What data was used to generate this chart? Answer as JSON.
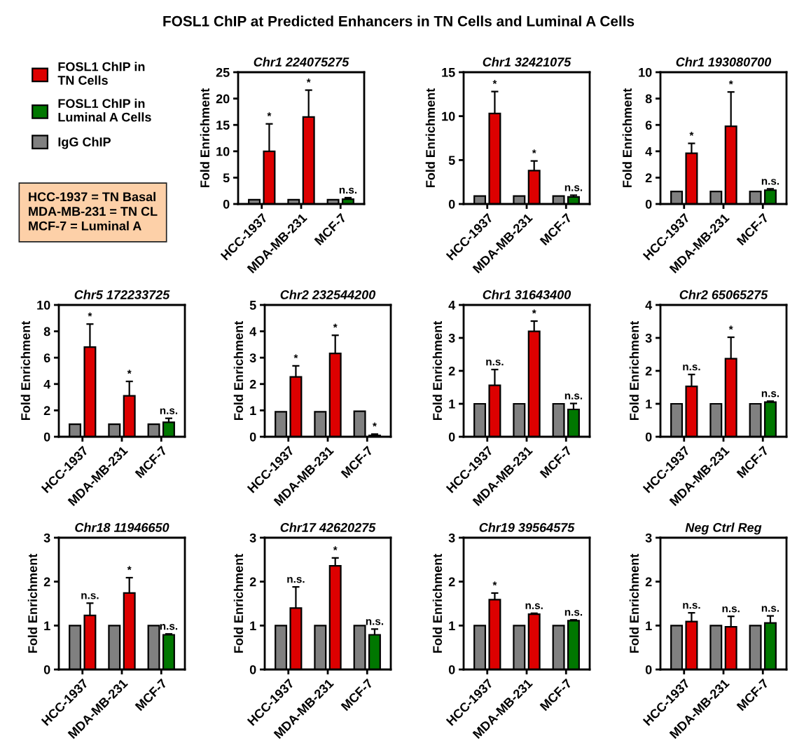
{
  "chart_data": [
    {
      "type": "other",
      "title": "FOSL1 ChIP at Predicted Enhancers in TN Cells and Luminal A Cells",
      "annotations": [
        "HCC-1937 = TN Basal\nMDA-MB-231 = TN CL\nMCF-7 = Luminal A"
      ]
    },
    {
      "type": "bar",
      "title": "Chr1 224075275",
      "ylabel": "Fold Enrichment",
      "categories": [
        "HCC-1937",
        "MDA-MB-231",
        "MCF-7"
      ],
      "ylim": [
        0,
        25
      ],
      "yticks": [
        0,
        5,
        10,
        15,
        20,
        25
      ],
      "legend": "left",
      "series": [
        {
          "name": "IgG ChIP",
          "color": "#808080",
          "values": [
            0.8,
            0.8,
            0.8
          ]
        },
        {
          "name": "FOSL1 ChIP in\nTN Cells",
          "color": "#dd0000",
          "values": [
            10.0,
            16.5,
            null
          ],
          "errors": [
            [
              10.0,
              15.2
            ],
            [
              16.5,
              21.6
            ],
            null
          ]
        },
        {
          "name": "FOSL1 ChIP in\nLuminal A Cells",
          "color": "#007700",
          "values": [
            null,
            null,
            0.9
          ],
          "errors": [
            null,
            null,
            [
              0.9,
              1.2
            ]
          ]
        }
      ],
      "annotations": [
        "*",
        "*",
        "n.s."
      ]
    },
    {
      "type": "bar",
      "title": "Chr1 32421075",
      "ylabel": "Fold Enrichment",
      "categories": [
        "HCC-1937",
        "MDA-MB-231",
        "MCF-7"
      ],
      "ylim": [
        0,
        15
      ],
      "yticks": [
        0,
        5,
        10,
        15
      ],
      "series": [
        {
          "color": "#808080",
          "values": [
            0.9,
            0.9,
            0.9
          ]
        },
        {
          "color": "#dd0000",
          "values": [
            10.3,
            3.8,
            null
          ],
          "errors": [
            [
              10.3,
              12.8
            ],
            [
              3.8,
              4.9
            ],
            null
          ]
        },
        {
          "color": "#007700",
          "values": [
            null,
            null,
            0.8
          ],
          "errors": [
            null,
            null,
            [
              0.8,
              1.0
            ]
          ]
        }
      ],
      "annotations": [
        "*",
        "*",
        "n.s."
      ]
    },
    {
      "type": "bar",
      "title": "Chr1 193080700",
      "ylabel": "Fold Enrichment",
      "categories": [
        "HCC-1937",
        "MDA-MB-231",
        "MCF-7"
      ],
      "ylim": [
        0,
        10
      ],
      "yticks": [
        0,
        2,
        4,
        6,
        8,
        10
      ],
      "series": [
        {
          "color": "#808080",
          "values": [
            0.95,
            0.95,
            0.95
          ]
        },
        {
          "color": "#dd0000",
          "values": [
            3.85,
            5.9,
            null
          ],
          "errors": [
            [
              3.85,
              4.6
            ],
            [
              5.9,
              8.5
            ],
            null
          ]
        },
        {
          "color": "#007700",
          "values": [
            null,
            null,
            1.05
          ],
          "errors": [
            null,
            null,
            [
              1.05,
              1.15
            ]
          ]
        }
      ],
      "annotations": [
        "*",
        "*",
        "n.s."
      ]
    },
    {
      "type": "bar",
      "title": "Chr5 172233725",
      "ylabel": "Fold Enrichment",
      "categories": [
        "HCC-1937",
        "MDA-MB-231",
        "MCF-7"
      ],
      "ylim": [
        0,
        10
      ],
      "yticks": [
        0,
        2,
        4,
        6,
        8,
        10
      ],
      "series": [
        {
          "color": "#808080",
          "values": [
            0.95,
            0.95,
            0.95
          ]
        },
        {
          "color": "#dd0000",
          "values": [
            6.8,
            3.1,
            null
          ],
          "errors": [
            [
              6.8,
              8.55
            ],
            [
              3.1,
              4.2
            ],
            null
          ]
        },
        {
          "color": "#007700",
          "values": [
            null,
            null,
            1.1
          ],
          "errors": [
            null,
            null,
            [
              1.1,
              1.4
            ]
          ]
        }
      ],
      "annotations": [
        "*",
        "*",
        "n.s."
      ]
    },
    {
      "type": "bar",
      "title": "Chr2 232544200",
      "ylabel": "Fold Enrichment",
      "categories": [
        "HCC-1937",
        "MDA-MB-231",
        "MCF-7"
      ],
      "ylim": [
        0,
        5
      ],
      "yticks": [
        0,
        1,
        2,
        3,
        4,
        5
      ],
      "series": [
        {
          "color": "#808080",
          "values": [
            0.95,
            0.95,
            0.97
          ]
        },
        {
          "color": "#dd0000",
          "values": [
            2.27,
            3.16,
            null
          ],
          "errors": [
            [
              2.27,
              2.69
            ],
            [
              3.16,
              3.85
            ],
            null
          ]
        },
        {
          "color": "#007700",
          "values": [
            null,
            null,
            0.05
          ],
          "errors": [
            null,
            null,
            [
              0.05,
              0.1
            ]
          ]
        }
      ],
      "annotations": [
        "*",
        "*",
        "*"
      ]
    },
    {
      "type": "bar",
      "title": "Chr1 31643400",
      "ylabel": "Fold Enrichment",
      "categories": [
        "HCC-1937",
        "MDA-MB-231",
        "MCF-7"
      ],
      "ylim": [
        0,
        4
      ],
      "yticks": [
        0,
        1,
        2,
        3,
        4
      ],
      "series": [
        {
          "color": "#808080",
          "values": [
            1.0,
            1.0,
            1.0
          ]
        },
        {
          "color": "#dd0000",
          "values": [
            1.56,
            3.2,
            null
          ],
          "errors": [
            [
              1.56,
              2.04
            ],
            [
              3.2,
              3.51
            ],
            null
          ]
        },
        {
          "color": "#007700",
          "values": [
            null,
            null,
            0.83
          ],
          "errors": [
            null,
            null,
            [
              0.83,
              1.01
            ]
          ]
        }
      ],
      "annotations": [
        "n.s.",
        "*",
        "n.s."
      ]
    },
    {
      "type": "bar",
      "title": "Chr2 65065275",
      "ylabel": "Fold Enrichment",
      "categories": [
        "HCC-1937",
        "MDA-MB-231",
        "MCF-7"
      ],
      "ylim": [
        0,
        4
      ],
      "yticks": [
        0,
        1,
        2,
        3,
        4
      ],
      "series": [
        {
          "color": "#808080",
          "values": [
            1.0,
            1.0,
            1.0
          ]
        },
        {
          "color": "#dd0000",
          "values": [
            1.53,
            2.37,
            null
          ],
          "errors": [
            [
              1.53,
              1.89
            ],
            [
              2.37,
              3.02
            ],
            null
          ]
        },
        {
          "color": "#007700",
          "values": [
            null,
            null,
            1.05
          ],
          "errors": [
            null,
            null,
            [
              1.05,
              1.08
            ]
          ]
        }
      ],
      "annotations": [
        "n.s.",
        "*",
        "n.s."
      ]
    },
    {
      "type": "bar",
      "title": "Chr18 11946650",
      "ylabel": "Fold Enrichment",
      "categories": [
        "HCC-1937",
        "MDA-MB-231",
        "MCF-7"
      ],
      "ylim": [
        0,
        3
      ],
      "yticks": [
        0,
        1,
        2,
        3
      ],
      "series": [
        {
          "color": "#808080",
          "values": [
            1.0,
            1.0,
            1.0
          ]
        },
        {
          "color": "#dd0000",
          "values": [
            1.23,
            1.74,
            null
          ],
          "errors": [
            [
              1.23,
              1.51
            ],
            [
              1.74,
              2.09
            ],
            null
          ]
        },
        {
          "color": "#007700",
          "values": [
            null,
            null,
            0.79
          ],
          "errors": [
            null,
            null,
            [
              0.79,
              0.81
            ]
          ]
        }
      ],
      "annotations": [
        "n.s.",
        "*",
        "n.s."
      ]
    },
    {
      "type": "bar",
      "title": "Chr17 42620275",
      "ylabel": "Fold Enrichment",
      "categories": [
        "HCC-1937",
        "MDA-MB-231",
        "MCF-7"
      ],
      "ylim": [
        0,
        3
      ],
      "yticks": [
        0,
        1,
        2,
        3
      ],
      "series": [
        {
          "color": "#808080",
          "values": [
            1.0,
            1.0,
            1.0
          ]
        },
        {
          "color": "#dd0000",
          "values": [
            1.4,
            2.36,
            null
          ],
          "errors": [
            [
              1.4,
              1.88
            ],
            [
              2.36,
              2.54
            ],
            null
          ]
        },
        {
          "color": "#007700",
          "values": [
            null,
            null,
            0.79
          ],
          "errors": [
            null,
            null,
            [
              0.79,
              0.92
            ]
          ]
        }
      ],
      "annotations": [
        "n.s.",
        "*",
        "n.s."
      ]
    },
    {
      "type": "bar",
      "title": "Chr19 39564575",
      "ylabel": "Fold Enrichment",
      "categories": [
        "HCC-1937",
        "MDA-MB-231",
        "MCF-7"
      ],
      "ylim": [
        0,
        3
      ],
      "yticks": [
        0,
        1,
        2,
        3
      ],
      "series": [
        {
          "color": "#808080",
          "values": [
            1.0,
            1.0,
            1.0
          ]
        },
        {
          "color": "#dd0000",
          "values": [
            1.59,
            1.26,
            null
          ],
          "errors": [
            [
              1.59,
              1.74
            ],
            [
              1.26,
              1.28
            ],
            null
          ]
        },
        {
          "color": "#007700",
          "values": [
            null,
            null,
            1.11
          ],
          "errors": [
            null,
            null,
            [
              1.11,
              1.13
            ]
          ]
        }
      ],
      "annotations": [
        "*",
        "n.s.",
        "n.s."
      ]
    },
    {
      "type": "bar",
      "title": "Neg Ctrl Reg",
      "ylabel": "Fold Enrichment",
      "categories": [
        "HCC-1937",
        "MDA-MB-231",
        "MCF-7"
      ],
      "ylim": [
        0,
        3
      ],
      "yticks": [
        0,
        1,
        2,
        3
      ],
      "series": [
        {
          "color": "#808080",
          "values": [
            1.0,
            1.0,
            1.0
          ]
        },
        {
          "color": "#dd0000",
          "values": [
            1.09,
            0.97,
            null
          ],
          "errors": [
            [
              1.09,
              1.29
            ],
            [
              0.97,
              1.21
            ],
            null
          ]
        },
        {
          "color": "#007700",
          "values": [
            null,
            null,
            1.06
          ],
          "errors": [
            null,
            null,
            [
              1.06,
              1.22
            ]
          ]
        }
      ],
      "annotations": [
        "n.s.",
        "n.s.",
        "n.s."
      ]
    }
  ]
}
